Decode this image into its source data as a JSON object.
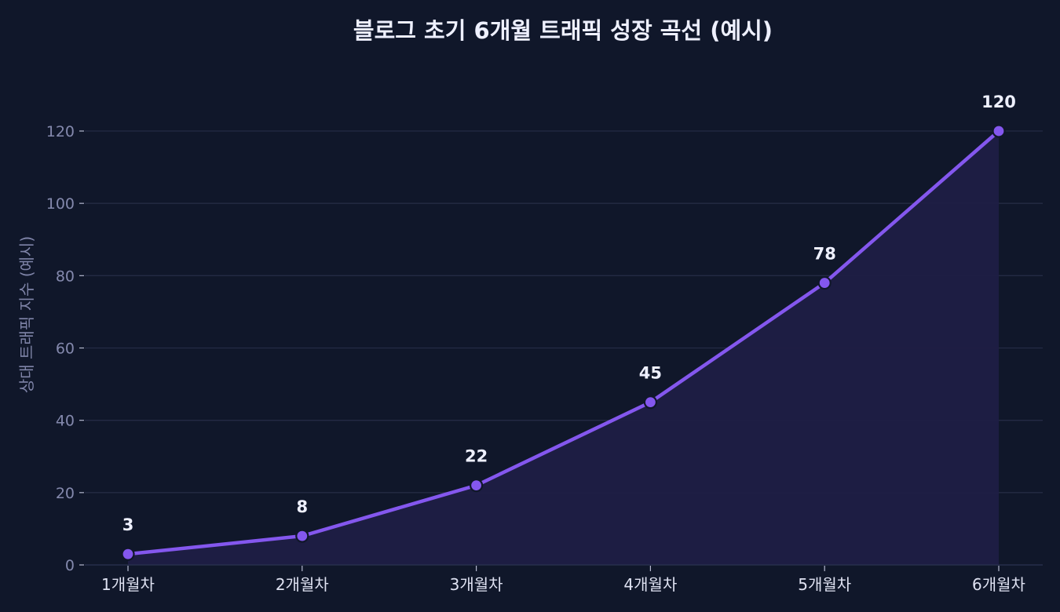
{
  "chart_data": {
    "type": "area",
    "title": "블로그 초기 6개월 트래픽 성장 곡선 (예시)",
    "xlabel": "",
    "ylabel": "상대 트래픽 지수 (예시)",
    "categories": [
      "1개월차",
      "2개월차",
      "3개월차",
      "4개월차",
      "5개월차",
      "6개월차"
    ],
    "values": [
      3,
      8,
      22,
      45,
      78,
      120
    ],
    "data_labels": [
      "3",
      "8",
      "22",
      "45",
      "78",
      "120"
    ],
    "yticks": [
      0,
      20,
      40,
      60,
      80,
      100,
      120
    ],
    "ytick_labels": [
      "0",
      "20",
      "40",
      "60",
      "80",
      "100",
      "120"
    ],
    "ylim": [
      0,
      120
    ],
    "grid": true,
    "legend": "none",
    "colors": {
      "background": "#10172a",
      "line": "#8457ee",
      "marker": "#8457ee",
      "marker_edge": "#10172a",
      "fill": "#1f1e45",
      "grid": "#242b44"
    }
  }
}
